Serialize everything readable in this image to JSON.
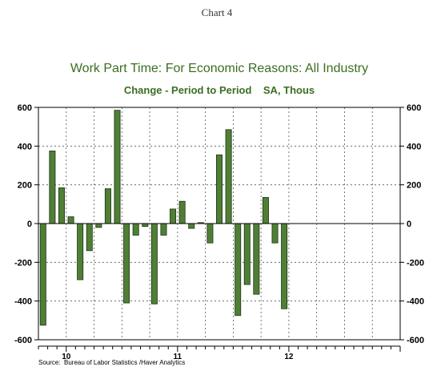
{
  "header": {
    "chart_number": "Chart 4"
  },
  "source": "Source:  Bureau of Labor Statistics /Haver Analytics",
  "colors": {
    "title": "#3b6e22",
    "bar_fill": "#4f7f35",
    "bar_stroke": "#1f3314",
    "axis": "#000000",
    "grid": "#555555"
  },
  "chart_data": {
    "type": "bar",
    "title": "Work Part Time: For Economic Reasons: All Industry",
    "subtitle": "Change - Period to Period    SA, Thous",
    "categories": [
      "2009-10",
      "2009-11",
      "2009-12",
      "2010-01",
      "2010-02",
      "2010-03",
      "2010-04",
      "2010-05",
      "2010-06",
      "2010-07",
      "2010-08",
      "2010-09",
      "2010-10",
      "2010-11",
      "2010-12",
      "2011-01",
      "2011-02",
      "2011-03",
      "2011-04",
      "2011-05",
      "2011-06",
      "2011-07",
      "2011-08",
      "2011-09",
      "2011-10",
      "2011-11",
      "2011-12"
    ],
    "values": [
      -525,
      375,
      185,
      35,
      -290,
      -140,
      -20,
      180,
      585,
      -410,
      -60,
      -15,
      -415,
      -60,
      75,
      115,
      -25,
      5,
      -100,
      355,
      485,
      -475,
      -315,
      -365,
      135,
      -100,
      -440
    ],
    "y_ticks": [
      600,
      400,
      200,
      0,
      -200,
      -400,
      -600
    ],
    "y_tick_labels": [
      "600",
      "400",
      "200",
      "0",
      "-200",
      "-400",
      "-600"
    ],
    "ylim": [
      -600,
      600
    ],
    "x_tick_labels": [
      {
        "label": "10",
        "month_index": 3
      },
      {
        "label": "11",
        "month_index": 15
      },
      {
        "label": "12",
        "month_index": 27
      }
    ],
    "x_month_range": [
      0,
      39
    ],
    "grid": true,
    "zero_line": true
  }
}
